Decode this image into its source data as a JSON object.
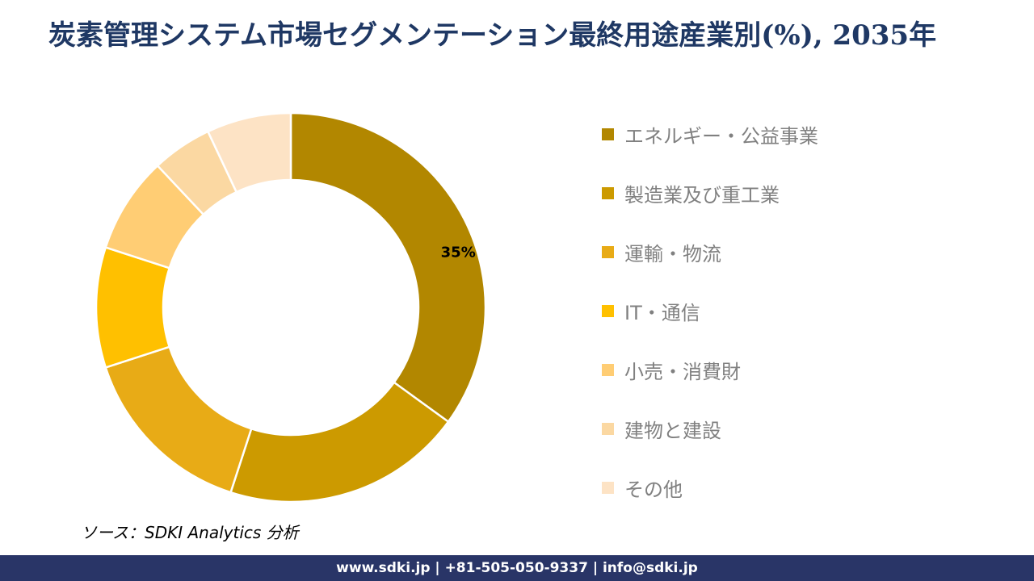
{
  "title": "炭素管理システム市場セグメンテーション最終用途産業別(%), 2035年",
  "chart_data": {
    "type": "pie",
    "subtype": "donut",
    "title": "炭素管理システム市場セグメンテーション最終用途産業別(%), 2035年",
    "unit": "%",
    "categories": [
      "エネルギー・公益事業",
      "製造業及び重工業",
      "運輸・物流",
      "IT・通信",
      "小売・消費財",
      "建物と建設",
      "その他"
    ],
    "values": [
      35,
      20,
      15,
      10,
      8,
      5,
      7
    ],
    "colors": [
      "#B28700",
      "#CC9A00",
      "#E8AB16",
      "#FFC000",
      "#FFCD74",
      "#FBD8A2",
      "#FDE3C5"
    ],
    "data_labels": [
      "35%",
      "",
      "",
      "",
      "",
      "",
      ""
    ],
    "legend_position": "right",
    "start_angle_deg": 0,
    "direction": "clockwise",
    "slice_border_color": "#FFFFFF"
  },
  "source_note": "ソース：SDKI Analytics 分析",
  "footer": {
    "text": "www.sdki.jp | +81-505-050-9337 | info@sdki.jp",
    "background_color": "#293567",
    "text_color": "#FFFFFF"
  },
  "colors": {
    "title_text": "#1F3864",
    "legend_text": "#808080",
    "data_label_text": "#000000",
    "background": "#FFFFFF"
  }
}
